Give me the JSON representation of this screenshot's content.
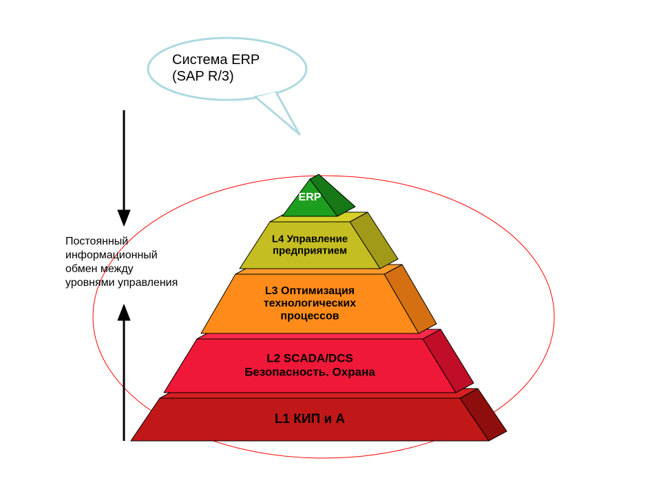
{
  "diagram": {
    "background_color": "#ffffff",
    "stroke_color": "#000000",
    "ellipse_color": "#ff0000",
    "ellipse_stroke_width": 1,
    "callout": {
      "line1": "Система ERP",
      "line2": "(SAP R/3)",
      "stroke_color": "#aed9e0",
      "fill_color": "#ffffff",
      "font_size": 20
    },
    "side_label": {
      "line1": "Постоянный",
      "line2": "информационный",
      "line3": "обмен  между",
      "line4": "уровнями управления",
      "font_size": 16,
      "color": "#000000"
    },
    "arrow": {
      "color": "#000000",
      "stroke_width": 3
    },
    "levels": [
      {
        "id": "erp",
        "label_lines": [
          "ERP"
        ],
        "font_size": 16,
        "text_color": "#ffffff",
        "top_fill": "#2ab02a",
        "front_fill": "#1e9e1e",
        "side_fill": "#167816",
        "is_apex": true
      },
      {
        "id": "l4",
        "label_lines": [
          "L4 Управление",
          "предприятием"
        ],
        "font_size": 15,
        "text_color": "#000000",
        "top_fill": "#d6d028",
        "front_fill": "#c4be22",
        "side_fill": "#a09a18"
      },
      {
        "id": "l3",
        "label_lines": [
          "L3 Оптимизация",
          "технологических",
          "процессов"
        ],
        "font_size": 16,
        "text_color": "#000000",
        "top_fill": "#ff9a2a",
        "front_fill": "#ff8c1a",
        "side_fill": "#d47012"
      },
      {
        "id": "l2",
        "label_lines": [
          "L2 SCADA/DCS",
          "Безопасность. Охрана"
        ],
        "font_size": 17,
        "text_color": "#000000",
        "top_fill": "#ff2a4a",
        "front_fill": "#f01838",
        "side_fill": "#c00e28"
      },
      {
        "id": "l1",
        "label_lines": [
          "L1 КИП и А"
        ],
        "font_size": 19,
        "text_color": "#000000",
        "top_fill": "#d62020",
        "front_fill": "#c01818",
        "side_fill": "#8e0e0e"
      }
    ]
  }
}
